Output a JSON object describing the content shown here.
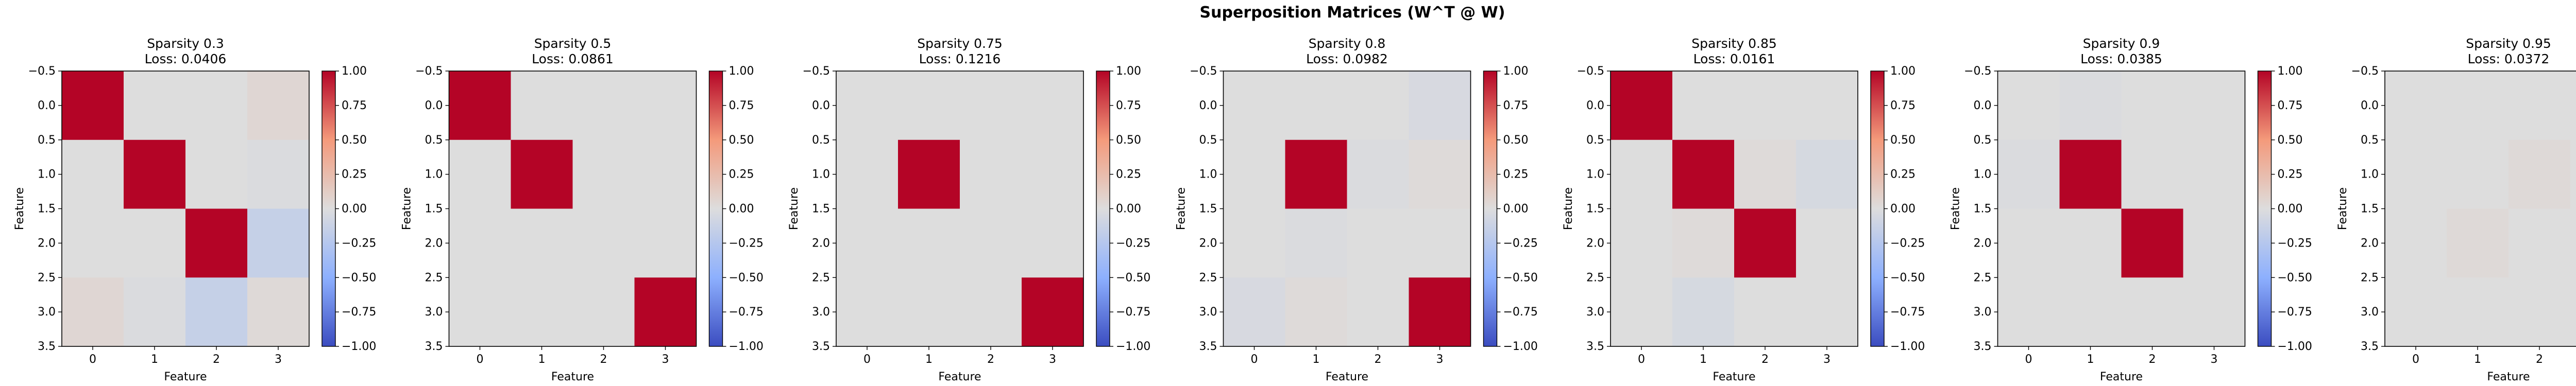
{
  "chart_data": {
    "type": "heatmap",
    "suptitle": "Superposition Matrices (W^T @ W)",
    "xlabel": "Feature",
    "ylabel": "Feature",
    "tick_labels": [
      "0",
      "1",
      "2",
      "3"
    ],
    "y_ticks": [
      "−0.5",
      "0.0",
      "0.5",
      "1.0",
      "1.5",
      "2.0",
      "2.5",
      "3.0",
      "3.5"
    ],
    "x_ticks": [
      "0",
      "1",
      "2",
      "3"
    ],
    "xlim": [
      -0.5,
      3.5
    ],
    "ylim": [
      3.5,
      -0.5
    ],
    "colormap": "coolwarm",
    "colorbar_range": [
      -1.0,
      1.0
    ],
    "colorbar_ticks": [
      "1.00",
      "0.75",
      "0.50",
      "0.25",
      "0.00",
      "−0.25",
      "−0.50",
      "−0.75",
      "−1.00"
    ],
    "colors": {
      "low": "#3b4cc0",
      "mid": "#dddddd",
      "high": "#b40426"
    },
    "panels": [
      {
        "title": "Sparsity 0.3",
        "loss": "Loss: 0.0406",
        "matrix": [
          [
            1.0,
            0.0,
            0.0,
            0.05
          ],
          [
            0.0,
            1.0,
            0.0,
            -0.02
          ],
          [
            0.0,
            0.0,
            1.0,
            -0.15
          ],
          [
            0.05,
            -0.02,
            -0.15,
            0.03
          ]
        ]
      },
      {
        "title": "Sparsity 0.5",
        "loss": "Loss: 0.0861",
        "matrix": [
          [
            1.0,
            0.0,
            0.0,
            0.0
          ],
          [
            0.0,
            1.0,
            0.0,
            0.0
          ],
          [
            0.0,
            0.0,
            0.0,
            0.0
          ],
          [
            0.0,
            0.0,
            0.0,
            1.0
          ]
        ]
      },
      {
        "title": "Sparsity 0.75",
        "loss": "Loss: 0.1216",
        "matrix": [
          [
            0.0,
            0.0,
            0.0,
            0.0
          ],
          [
            0.0,
            1.0,
            0.0,
            0.0
          ],
          [
            0.0,
            0.0,
            0.0,
            0.0
          ],
          [
            0.0,
            0.0,
            0.0,
            1.0
          ]
        ]
      },
      {
        "title": "Sparsity 0.8",
        "loss": "Loss: 0.0982",
        "matrix": [
          [
            0.0,
            0.0,
            0.0,
            -0.04
          ],
          [
            0.0,
            1.0,
            -0.02,
            0.02
          ],
          [
            0.0,
            -0.02,
            0.0,
            0.0
          ],
          [
            -0.04,
            0.02,
            0.0,
            1.0
          ]
        ]
      },
      {
        "title": "Sparsity 0.85",
        "loss": "Loss: 0.0161",
        "matrix": [
          [
            1.0,
            0.0,
            0.0,
            0.0
          ],
          [
            0.0,
            1.0,
            0.02,
            -0.05
          ],
          [
            0.0,
            0.02,
            1.0,
            0.0
          ],
          [
            0.0,
            -0.05,
            0.0,
            0.0
          ]
        ]
      },
      {
        "title": "Sparsity 0.9",
        "loss": "Loss: 0.0385",
        "matrix": [
          [
            0.0,
            -0.02,
            0.0,
            0.0
          ],
          [
            -0.02,
            1.0,
            0.0,
            0.0
          ],
          [
            0.0,
            0.0,
            1.0,
            0.0
          ],
          [
            0.0,
            0.0,
            0.0,
            0.0
          ]
        ]
      },
      {
        "title": "Sparsity 0.95",
        "loss": "Loss: 0.0372",
        "matrix": [
          [
            0.0,
            0.0,
            0.0,
            0.0
          ],
          [
            0.0,
            0.0,
            0.03,
            0.0
          ],
          [
            0.0,
            0.03,
            0.0,
            0.0
          ],
          [
            0.0,
            0.0,
            0.0,
            0.0
          ]
        ]
      }
    ]
  }
}
